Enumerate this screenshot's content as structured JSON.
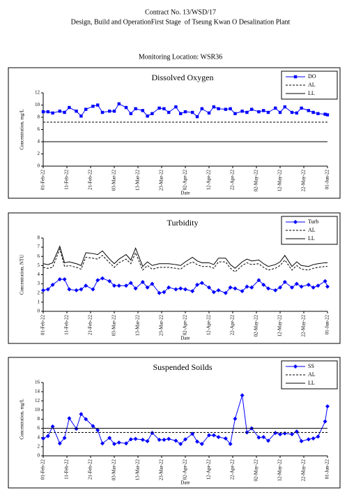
{
  "header": {
    "contract": "Contract No. 13/WSD/17",
    "project": "Design, Build and OperationFirst Stage  of Tseung Kwan O Desalination Plant",
    "location": "Monitoring Location: WSR36"
  },
  "chart_data": [
    {
      "type": "line",
      "title": "Dissolved Oxygen",
      "x_label": "Date",
      "y_label": "Concentration, mg/L",
      "x": [
        "2022-02-01",
        "2022-02-03",
        "2022-02-05",
        "2022-02-08",
        "2022-02-10",
        "2022-02-12",
        "2022-02-15",
        "2022-02-17",
        "2022-02-19",
        "2022-02-22",
        "2022-02-24",
        "2022-02-26",
        "2022-03-01",
        "2022-03-03",
        "2022-03-05",
        "2022-03-08",
        "2022-03-10",
        "2022-03-12",
        "2022-03-15",
        "2022-03-17",
        "2022-03-19",
        "2022-03-22",
        "2022-03-24",
        "2022-03-26",
        "2022-03-29",
        "2022-03-31",
        "2022-04-02",
        "2022-04-05",
        "2022-04-07",
        "2022-04-09",
        "2022-04-12",
        "2022-04-14",
        "2022-04-16",
        "2022-04-19",
        "2022-04-21",
        "2022-04-23",
        "2022-04-26",
        "2022-04-28",
        "2022-04-30",
        "2022-05-03",
        "2022-05-05",
        "2022-05-07",
        "2022-05-10",
        "2022-05-12",
        "2022-05-14",
        "2022-05-17",
        "2022-05-19",
        "2022-05-21",
        "2022-05-24",
        "2022-05-26",
        "2022-05-28",
        "2022-05-31",
        "2022-06-01"
      ],
      "series": [
        {
          "name": "DO",
          "color": "#0000ff",
          "marker": "square",
          "dash": false,
          "values": [
            8.9,
            8.9,
            8.7,
            9.0,
            8.8,
            9.6,
            9.0,
            8.2,
            9.3,
            9.8,
            10.0,
            8.8,
            9.0,
            9.0,
            10.2,
            9.6,
            8.6,
            9.4,
            9.1,
            8.2,
            8.6,
            9.5,
            9.4,
            8.8,
            9.7,
            8.6,
            8.9,
            8.8,
            8.1,
            9.4,
            8.7,
            9.7,
            9.4,
            9.3,
            9.4,
            8.6,
            9.0,
            8.8,
            9.3,
            8.9,
            9.1,
            8.8,
            9.5,
            8.8,
            9.7,
            8.8,
            8.7,
            9.5,
            9.1,
            8.8,
            8.6,
            8.5,
            8.4
          ]
        },
        {
          "name": "AL",
          "color": "#000000",
          "marker": null,
          "dash": true,
          "values": [
            7.2,
            7.2,
            7.2,
            7.2,
            7.2,
            7.2,
            7.2,
            7.2,
            7.2,
            7.2,
            7.2,
            7.2,
            7.2,
            7.2,
            7.2,
            7.2,
            7.2,
            7.2,
            7.2,
            7.2,
            7.2,
            7.2,
            7.2,
            7.2,
            7.2,
            7.2,
            7.2,
            7.2,
            7.2,
            7.2,
            7.2,
            7.2,
            7.2,
            7.2,
            7.2,
            7.2,
            7.2,
            7.2,
            7.2,
            7.2,
            7.2,
            7.2,
            7.2,
            7.2,
            7.2,
            7.2,
            7.2,
            7.2,
            7.2,
            7.2,
            7.2,
            7.2,
            7.2
          ]
        },
        {
          "name": "LL",
          "color": "#000000",
          "marker": null,
          "dash": false,
          "values": [
            4,
            4,
            4,
            4,
            4,
            4,
            4,
            4,
            4,
            4,
            4,
            4,
            4,
            4,
            4,
            4,
            4,
            4,
            4,
            4,
            4,
            4,
            4,
            4,
            4,
            4,
            4,
            4,
            4,
            4,
            4,
            4,
            4,
            4,
            4,
            4,
            4,
            4,
            4,
            4,
            4,
            4,
            4,
            4,
            4,
            4,
            4,
            4,
            4,
            4,
            4,
            4,
            4
          ]
        }
      ],
      "xlim": [
        "2022-02-01",
        "2022-06-01"
      ],
      "xticks": [
        {
          "value": "2022-02-01",
          "label": "01-Feb-22"
        },
        {
          "value": "2022-02-11",
          "label": "11-Feb-22"
        },
        {
          "value": "2022-02-21",
          "label": "21-Feb-22"
        },
        {
          "value": "2022-03-03",
          "label": "03-Mar-22"
        },
        {
          "value": "2022-03-13",
          "label": "13-Mar-22"
        },
        {
          "value": "2022-03-23",
          "label": "23-Mar-22"
        },
        {
          "value": "2022-04-02",
          "label": "02-Apr-22"
        },
        {
          "value": "2022-04-12",
          "label": "12-Apr-22"
        },
        {
          "value": "2022-04-22",
          "label": "22-Apr-22"
        },
        {
          "value": "2022-05-02",
          "label": "02-May-22"
        },
        {
          "value": "2022-05-12",
          "label": "12-May-22"
        },
        {
          "value": "2022-05-22",
          "label": "22-May-22"
        },
        {
          "value": "2022-06-01",
          "label": "01-Jun-22"
        }
      ],
      "ylim": [
        0,
        12
      ],
      "yticks": [
        0,
        2,
        4,
        6,
        8,
        10,
        12
      ],
      "legend": "upper right"
    },
    {
      "type": "line",
      "title": "Turbidity",
      "x_label": "Date",
      "y_label": "Concentration, NTU",
      "x": [
        "2022-02-01",
        "2022-02-03",
        "2022-02-05",
        "2022-02-08",
        "2022-02-10",
        "2022-02-12",
        "2022-02-15",
        "2022-02-17",
        "2022-02-19",
        "2022-02-22",
        "2022-02-24",
        "2022-02-26",
        "2022-03-01",
        "2022-03-03",
        "2022-03-05",
        "2022-03-08",
        "2022-03-10",
        "2022-03-12",
        "2022-03-15",
        "2022-03-17",
        "2022-03-19",
        "2022-03-22",
        "2022-03-24",
        "2022-03-26",
        "2022-03-29",
        "2022-03-31",
        "2022-04-02",
        "2022-04-05",
        "2022-04-07",
        "2022-04-09",
        "2022-04-12",
        "2022-04-14",
        "2022-04-16",
        "2022-04-19",
        "2022-04-21",
        "2022-04-23",
        "2022-04-26",
        "2022-04-28",
        "2022-04-30",
        "2022-05-03",
        "2022-05-05",
        "2022-05-07",
        "2022-05-10",
        "2022-05-12",
        "2022-05-14",
        "2022-05-17",
        "2022-05-19",
        "2022-05-21",
        "2022-05-24",
        "2022-05-26",
        "2022-05-28",
        "2022-05-31",
        "2022-06-01"
      ],
      "series": [
        {
          "name": "Turb",
          "color": "#0000ff",
          "marker": "diamond",
          "dash": false,
          "values": [
            2.3,
            2.4,
            2.9,
            3.5,
            3.5,
            2.4,
            2.3,
            2.4,
            2.8,
            2.4,
            3.4,
            3.6,
            3.3,
            2.8,
            2.8,
            2.8,
            3.1,
            2.5,
            3.2,
            2.6,
            3.0,
            2.0,
            2.1,
            2.6,
            2.4,
            2.5,
            2.4,
            2.2,
            2.9,
            3.1,
            2.6,
            2.1,
            2.3,
            2.0,
            2.6,
            2.5,
            2.2,
            2.7,
            2.6,
            3.4,
            2.9,
            2.5,
            2.3,
            2.6,
            3.2,
            2.6,
            3.0,
            2.7,
            2.9,
            2.6,
            2.8,
            3.3,
            2.7
          ]
        },
        {
          "name": "AL",
          "color": "#000000",
          "marker": null,
          "dash": true,
          "values": [
            4.8,
            4.7,
            4.8,
            6.8,
            4.9,
            5.0,
            4.8,
            4.6,
            5.9,
            5.8,
            5.7,
            6.1,
            5.3,
            4.8,
            5.3,
            5.7,
            5.2,
            6.4,
            4.5,
            5.0,
            4.6,
            4.8,
            4.8,
            4.8,
            4.7,
            4.6,
            5.0,
            5.4,
            5.1,
            4.9,
            4.9,
            4.7,
            5.4,
            5.4,
            4.7,
            4.3,
            5.0,
            5.3,
            5.1,
            5.2,
            4.8,
            4.5,
            4.7,
            5.0,
            5.6,
            4.5,
            5.0,
            4.6,
            4.5,
            4.7,
            4.8,
            4.9,
            4.9
          ]
        },
        {
          "name": "LL",
          "color": "#000000",
          "marker": null,
          "dash": false,
          "values": [
            5.2,
            5.1,
            5.3,
            7.1,
            5.3,
            5.4,
            5.2,
            5.0,
            6.4,
            6.3,
            6.2,
            6.6,
            5.7,
            5.2,
            5.7,
            6.2,
            5.6,
            6.9,
            4.9,
            5.4,
            5.0,
            5.2,
            5.2,
            5.2,
            5.1,
            5.0,
            5.4,
            5.9,
            5.5,
            5.3,
            5.3,
            5.1,
            5.8,
            5.8,
            5.1,
            4.7,
            5.4,
            5.7,
            5.5,
            5.6,
            5.2,
            4.9,
            5.1,
            5.4,
            6.1,
            4.9,
            5.4,
            5.0,
            4.9,
            5.1,
            5.2,
            5.3,
            5.3
          ]
        }
      ],
      "xlim": [
        "2022-02-01",
        "2022-06-01"
      ],
      "xticks": [
        {
          "value": "2022-02-01",
          "label": "01-Feb-22"
        },
        {
          "value": "2022-02-11",
          "label": "11-Feb-22"
        },
        {
          "value": "2022-02-21",
          "label": "21-Feb-22"
        },
        {
          "value": "2022-03-03",
          "label": "03-Mar-22"
        },
        {
          "value": "2022-03-13",
          "label": "13-Mar-22"
        },
        {
          "value": "2022-03-23",
          "label": "23-Mar-22"
        },
        {
          "value": "2022-04-02",
          "label": "02-Apr-22"
        },
        {
          "value": "2022-04-12",
          "label": "12-Apr-22"
        },
        {
          "value": "2022-04-22",
          "label": "22-Apr-22"
        },
        {
          "value": "2022-05-02",
          "label": "02-May-22"
        },
        {
          "value": "2022-05-12",
          "label": "12-May-22"
        },
        {
          "value": "2022-05-22",
          "label": "22-May-22"
        },
        {
          "value": "2022-06-01",
          "label": "01-Jun-22"
        }
      ],
      "ylim": [
        0,
        8
      ],
      "yticks": [
        0,
        1,
        2,
        3,
        4,
        5,
        6,
        7,
        8
      ],
      "legend": "upper right"
    },
    {
      "type": "line",
      "title": "Suspended Soilds",
      "x_label": "Date",
      "y_label": "Concentration, mg/L",
      "x": [
        "2022-02-01",
        "2022-02-03",
        "2022-02-05",
        "2022-02-08",
        "2022-02-10",
        "2022-02-12",
        "2022-02-15",
        "2022-02-17",
        "2022-02-19",
        "2022-02-22",
        "2022-02-24",
        "2022-02-26",
        "2022-03-01",
        "2022-03-03",
        "2022-03-05",
        "2022-03-08",
        "2022-03-10",
        "2022-03-12",
        "2022-03-15",
        "2022-03-17",
        "2022-03-19",
        "2022-03-22",
        "2022-03-24",
        "2022-03-26",
        "2022-03-29",
        "2022-03-31",
        "2022-04-02",
        "2022-04-05",
        "2022-04-07",
        "2022-04-09",
        "2022-04-12",
        "2022-04-14",
        "2022-04-16",
        "2022-04-19",
        "2022-04-21",
        "2022-04-23",
        "2022-04-26",
        "2022-04-28",
        "2022-04-30",
        "2022-05-03",
        "2022-05-05",
        "2022-05-07",
        "2022-05-10",
        "2022-05-12",
        "2022-05-14",
        "2022-05-17",
        "2022-05-19",
        "2022-05-21",
        "2022-05-24",
        "2022-05-26",
        "2022-05-28",
        "2022-05-31",
        "2022-06-01"
      ],
      "series": [
        {
          "name": "SS",
          "color": "#0000ff",
          "marker": "diamond",
          "dash": false,
          "values": [
            3.8,
            4.3,
            6.4,
            2.7,
            3.9,
            8.2,
            5.9,
            9.1,
            8.0,
            6.5,
            5.6,
            2.7,
            3.9,
            2.6,
            2.9,
            2.7,
            3.6,
            3.7,
            3.5,
            3.2,
            5.0,
            3.5,
            3.5,
            3.7,
            3.3,
            2.6,
            3.6,
            4.8,
            3.1,
            2.6,
            4.5,
            4.5,
            4.1,
            3.8,
            2.6,
            8.1,
            13.2,
            5.1,
            6.0,
            4.0,
            4.1,
            3.3,
            5.0,
            4.7,
            4.9,
            4.7,
            5.3,
            3.2,
            3.6,
            3.8,
            4.2,
            7.5,
            10.8
          ]
        },
        {
          "name": "AL",
          "color": "#000000",
          "marker": null,
          "dash": true,
          "values": [
            5.1,
            5.1,
            5.1,
            5.1,
            5.1,
            5.1,
            5.1,
            5.1,
            5.1,
            5.1,
            5.1,
            5.1,
            5.1,
            5.1,
            5.1,
            5.1,
            5.1,
            5.1,
            5.1,
            5.1,
            5.1,
            5.1,
            5.1,
            5.1,
            5.1,
            5.1,
            5.1,
            5.1,
            5.1,
            5.1,
            5.1,
            5.1,
            5.1,
            5.1,
            5.1,
            5.1,
            5.1,
            5.1,
            5.1,
            5.1,
            5.1,
            5.1,
            5.1,
            5.1,
            5.1,
            5.1,
            5.1,
            5.1,
            5.1,
            5.1,
            5.1,
            5.1,
            5.1
          ]
        },
        {
          "name": "LL",
          "color": "#000000",
          "marker": null,
          "dash": false,
          "values": [
            6,
            6,
            6,
            6,
            6,
            6,
            6,
            6,
            6,
            6,
            6,
            6,
            6,
            6,
            6,
            6,
            6,
            6,
            6,
            6,
            6,
            6,
            6,
            6,
            6,
            6,
            6,
            6,
            6,
            6,
            6,
            6,
            6,
            6,
            6,
            6,
            6,
            6,
            6,
            6,
            6,
            6,
            6,
            6,
            6,
            6,
            6,
            6,
            6,
            6,
            6,
            6,
            6
          ]
        }
      ],
      "xlim": [
        "2022-02-01",
        "2022-06-01"
      ],
      "xticks": [
        {
          "value": "2022-02-01",
          "label": "01-Feb-22"
        },
        {
          "value": "2022-02-11",
          "label": "11-Feb-22"
        },
        {
          "value": "2022-02-21",
          "label": "21-Feb-22"
        },
        {
          "value": "2022-03-03",
          "label": "03-Mar-22"
        },
        {
          "value": "2022-03-13",
          "label": "13-Mar-22"
        },
        {
          "value": "2022-03-23",
          "label": "23-Mar-22"
        },
        {
          "value": "2022-04-02",
          "label": "02-Apr-22"
        },
        {
          "value": "2022-04-12",
          "label": "12-Apr-22"
        },
        {
          "value": "2022-04-22",
          "label": "22-Apr-22"
        },
        {
          "value": "2022-05-02",
          "label": "02-May-22"
        },
        {
          "value": "2022-05-12",
          "label": "12-May-22"
        },
        {
          "value": "2022-05-22",
          "label": "22-May-22"
        },
        {
          "value": "2022-06-01",
          "label": "01-Jun-22"
        }
      ],
      "ylim": [
        0,
        16
      ],
      "yticks": [
        0,
        2,
        4,
        6,
        8,
        10,
        12,
        14,
        16
      ],
      "legend": "upper right"
    }
  ]
}
